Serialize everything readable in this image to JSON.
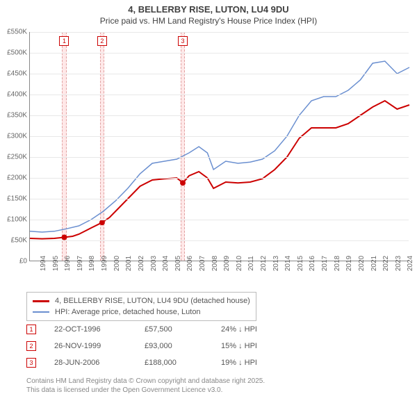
{
  "title": {
    "line1": "4, BELLERBY RISE, LUTON, LU4 9DU",
    "line2": "Price paid vs. HM Land Registry's House Price Index (HPI)",
    "fontsize_line1": 13,
    "fontsize_line2": 12,
    "color": "#404040"
  },
  "chart": {
    "type": "line",
    "background_color": "#ffffff",
    "grid_color": "#e8e8e8",
    "axis_color": "#888888",
    "label_color": "#666666",
    "label_fontsize": 10,
    "y_axis": {
      "min": 0,
      "max": 550000,
      "tick_step": 50000,
      "ticks": [
        "£0",
        "£50K",
        "£100K",
        "£150K",
        "£200K",
        "£250K",
        "£300K",
        "£350K",
        "£400K",
        "£450K",
        "£500K",
        "£550K"
      ]
    },
    "x_axis": {
      "min": 1994,
      "max": 2025,
      "tick_step": 1,
      "ticks": [
        "1994",
        "1995",
        "1996",
        "1997",
        "1998",
        "1999",
        "2000",
        "2001",
        "2002",
        "2003",
        "2004",
        "2005",
        "2006",
        "2007",
        "2008",
        "2009",
        "2010",
        "2011",
        "2012",
        "2013",
        "2014",
        "2015",
        "2016",
        "2017",
        "2018",
        "2019",
        "2020",
        "2021",
        "2022",
        "2023",
        "2024",
        "2025"
      ]
    },
    "series": [
      {
        "name": "price_paid",
        "label": "4, BELLERBY RISE, LUTON, LU4 9DU (detached house)",
        "color": "#cc0000",
        "line_width": 2,
        "points": [
          [
            1994.0,
            55000
          ],
          [
            1995.0,
            54000
          ],
          [
            1996.0,
            55000
          ],
          [
            1996.8,
            57500
          ],
          [
            1997.5,
            60000
          ],
          [
            1998.0,
            65000
          ],
          [
            1999.0,
            80000
          ],
          [
            1999.9,
            93000
          ],
          [
            2000.5,
            105000
          ],
          [
            2001.0,
            120000
          ],
          [
            2002.0,
            150000
          ],
          [
            2003.0,
            180000
          ],
          [
            2004.0,
            195000
          ],
          [
            2005.0,
            198000
          ],
          [
            2006.0,
            200000
          ],
          [
            2006.5,
            188000
          ],
          [
            2007.0,
            205000
          ],
          [
            2007.8,
            215000
          ],
          [
            2008.5,
            200000
          ],
          [
            2009.0,
            175000
          ],
          [
            2010.0,
            190000
          ],
          [
            2011.0,
            188000
          ],
          [
            2012.0,
            190000
          ],
          [
            2013.0,
            198000
          ],
          [
            2014.0,
            220000
          ],
          [
            2015.0,
            250000
          ],
          [
            2016.0,
            295000
          ],
          [
            2017.0,
            320000
          ],
          [
            2018.0,
            320000
          ],
          [
            2019.0,
            320000
          ],
          [
            2020.0,
            330000
          ],
          [
            2021.0,
            350000
          ],
          [
            2022.0,
            370000
          ],
          [
            2023.0,
            385000
          ],
          [
            2024.0,
            365000
          ],
          [
            2025.0,
            375000
          ]
        ],
        "sale_markers": [
          {
            "x": 1996.81,
            "y": 57500
          },
          {
            "x": 1999.9,
            "y": 93000
          },
          {
            "x": 2006.49,
            "y": 188000
          }
        ],
        "marker_radius": 4
      },
      {
        "name": "hpi",
        "label": "HPI: Average price, detached house, Luton",
        "color": "#6a8fd0",
        "line_width": 1.5,
        "points": [
          [
            1994.0,
            72000
          ],
          [
            1995.0,
            70000
          ],
          [
            1996.0,
            72000
          ],
          [
            1997.0,
            78000
          ],
          [
            1998.0,
            85000
          ],
          [
            1999.0,
            100000
          ],
          [
            2000.0,
            120000
          ],
          [
            2001.0,
            145000
          ],
          [
            2002.0,
            175000
          ],
          [
            2003.0,
            210000
          ],
          [
            2004.0,
            235000
          ],
          [
            2005.0,
            240000
          ],
          [
            2006.0,
            245000
          ],
          [
            2007.0,
            260000
          ],
          [
            2007.8,
            275000
          ],
          [
            2008.5,
            260000
          ],
          [
            2009.0,
            220000
          ],
          [
            2010.0,
            240000
          ],
          [
            2011.0,
            235000
          ],
          [
            2012.0,
            238000
          ],
          [
            2013.0,
            245000
          ],
          [
            2014.0,
            265000
          ],
          [
            2015.0,
            300000
          ],
          [
            2016.0,
            350000
          ],
          [
            2017.0,
            385000
          ],
          [
            2018.0,
            395000
          ],
          [
            2019.0,
            395000
          ],
          [
            2020.0,
            410000
          ],
          [
            2021.0,
            435000
          ],
          [
            2022.0,
            475000
          ],
          [
            2023.0,
            480000
          ],
          [
            2024.0,
            450000
          ],
          [
            2025.0,
            465000
          ]
        ]
      }
    ],
    "bands": [
      {
        "num": "1",
        "x": 1996.81,
        "width_years": 0.35
      },
      {
        "num": "2",
        "x": 1999.9,
        "width_years": 0.35
      },
      {
        "num": "3",
        "x": 2006.49,
        "width_years": 0.35
      }
    ],
    "band_fill": "#ffe8e8",
    "band_border": "#e0a0a0",
    "band_num_border": "#cc0000",
    "band_num_color": "#cc0000"
  },
  "legend": {
    "border_color": "#bbbbbb",
    "items": [
      {
        "color": "#cc0000",
        "label": "4, BELLERBY RISE, LUTON, LU4 9DU (detached house)"
      },
      {
        "color": "#6a8fd0",
        "label": "HPI: Average price, detached house, Luton"
      }
    ]
  },
  "sales": [
    {
      "num": "1",
      "date": "22-OCT-1996",
      "price": "£57,500",
      "delta": "24% ↓ HPI"
    },
    {
      "num": "2",
      "date": "26-NOV-1999",
      "price": "£93,000",
      "delta": "15% ↓ HPI"
    },
    {
      "num": "3",
      "date": "28-JUN-2006",
      "price": "£188,000",
      "delta": "19% ↓ HPI"
    }
  ],
  "footer": {
    "line1": "Contains HM Land Registry data © Crown copyright and database right 2025.",
    "line2": "This data is licensed under the Open Government Licence v3.0.",
    "color": "#888888",
    "fontsize": 10
  }
}
